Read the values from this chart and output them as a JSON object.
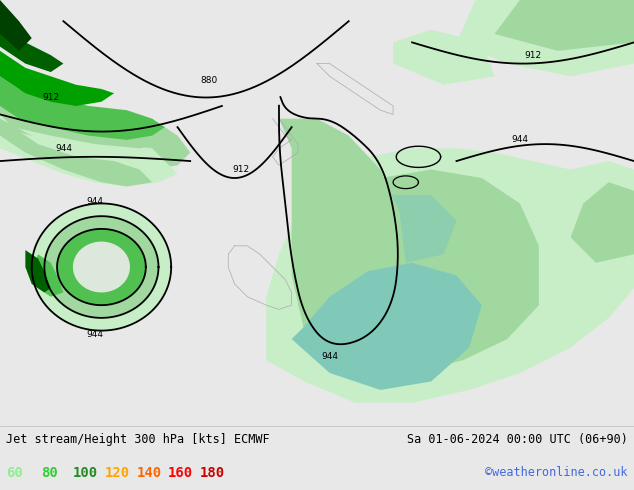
{
  "title_left": "Jet stream/Height 300 hPa [kts] ECMWF",
  "title_right": "Sa 01-06-2024 00:00 UTC (06+90)",
  "credit": "©weatheronline.co.uk",
  "legend_values": [
    "60",
    "80",
    "100",
    "120",
    "140",
    "160",
    "180"
  ],
  "legend_colors": [
    "#90ee90",
    "#32cd32",
    "#228b22",
    "#ffa500",
    "#ff6600",
    "#ff0000",
    "#cc0000"
  ],
  "bg_color": "#e8e8e8",
  "land_color": "#e0e0e0",
  "sea_color": "#e8e8e8",
  "bottom_bar_color": "#f0f0f0",
  "title_color": "#000000",
  "credit_color": "#4169e1",
  "figsize": [
    6.34,
    4.9
  ],
  "dpi": 100
}
